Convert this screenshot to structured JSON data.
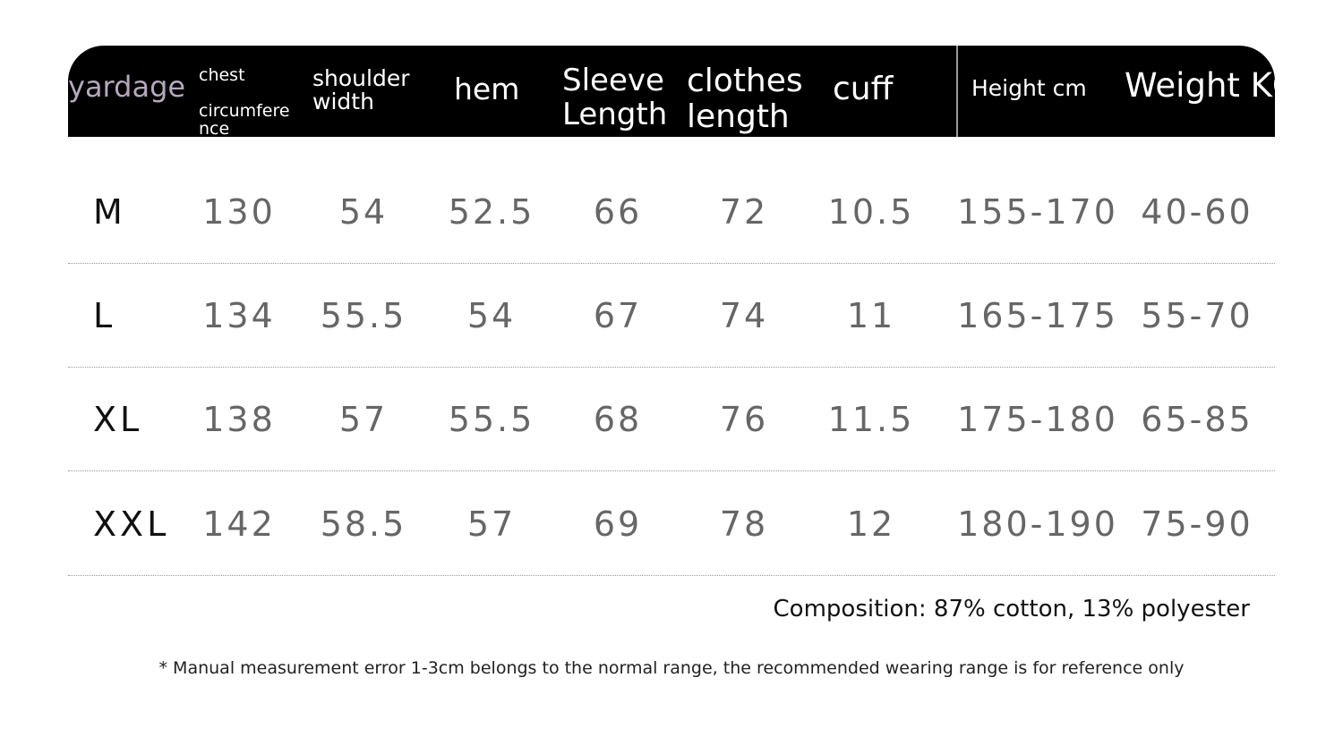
{
  "header": {
    "yardage": "yardage",
    "chest": "chest",
    "circumference": "circumfere",
    "circumference2": "nce",
    "shoulder": "shoulder",
    "width": "width",
    "hem": "hem",
    "sleeve": "Sleeve",
    "sleeve_length": "Length",
    "clothes": "clothes",
    "clothes_length": "length",
    "cuff": "cuff",
    "height": "Height cm",
    "weight": "Weight KG"
  },
  "rows": [
    {
      "size": "M",
      "values": [
        "130",
        "54",
        "52.5",
        "66",
        "72",
        "10.5",
        "155-170",
        "40-60"
      ]
    },
    {
      "size": "L",
      "values": [
        "134",
        "55.5",
        "54",
        "67",
        "74",
        "11",
        "165-175",
        "55-70"
      ]
    },
    {
      "size": "XL",
      "values": [
        "138",
        "57",
        "55.5",
        "68",
        "76",
        "11.5",
        "175-180",
        "65-85"
      ]
    },
    {
      "size": "XXL",
      "values": [
        "142",
        "58.5",
        "57",
        "69",
        "78",
        "12",
        "180-190",
        "75-90"
      ]
    }
  ],
  "composition": "Composition: 87% cotton, 13% polyester",
  "note": "* Manual measurement error 1-3cm belongs to the normal range, the recommended wearing range is for reference only",
  "colors": {
    "header_bg": "#000000",
    "value_text": "#666666"
  }
}
